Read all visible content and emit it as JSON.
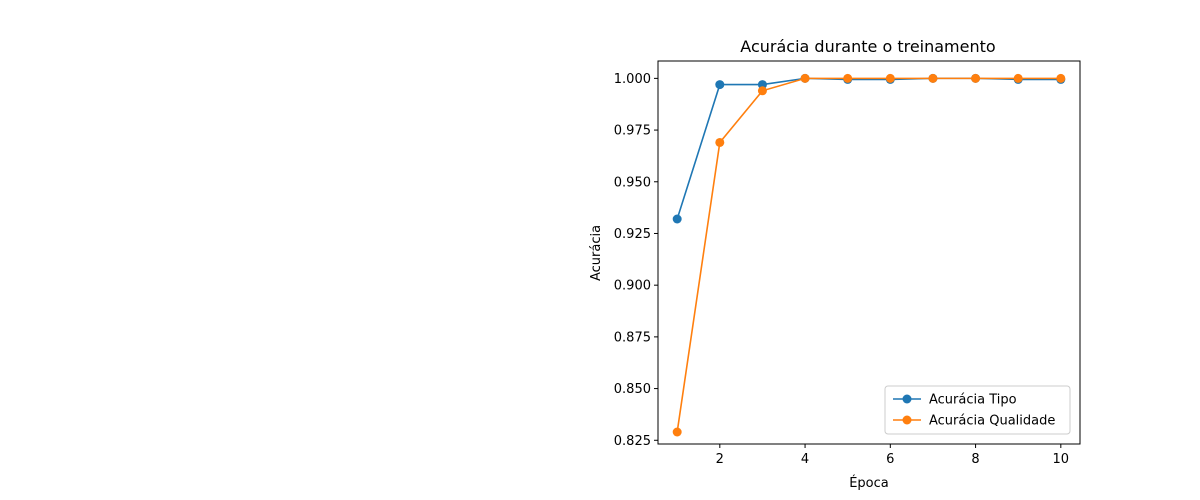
{
  "chart_data": {
    "type": "line",
    "title": "Acurácia durante o treinamento",
    "xlabel": "Época",
    "ylabel": "Acurácia",
    "x": [
      1,
      2,
      3,
      4,
      5,
      6,
      7,
      8,
      9,
      10
    ],
    "xlim": [
      0.55,
      10.45
    ],
    "ylim": [
      0.8232,
      1.0084
    ],
    "xticks": [
      2,
      4,
      6,
      8,
      10
    ],
    "xtick_labels": [
      "2",
      "4",
      "6",
      "8",
      "10"
    ],
    "yticks": [
      0.825,
      0.85,
      0.875,
      0.9,
      0.925,
      0.95,
      0.975,
      1.0
    ],
    "ytick_labels": [
      "0.825",
      "0.850",
      "0.875",
      "0.900",
      "0.925",
      "0.950",
      "0.975",
      "1.000"
    ],
    "grid": false,
    "legend_position": "lower-right",
    "series": [
      {
        "name": "Acurácia Tipo",
        "color": "#1f77b4",
        "values": [
          0.932,
          0.997,
          0.997,
          1.0,
          0.9995,
          0.9995,
          1.0,
          1.0,
          0.9995,
          0.9995
        ]
      },
      {
        "name": "Acurácia Qualidade",
        "color": "#ff7f0e",
        "values": [
          0.829,
          0.969,
          0.994,
          1.0,
          1.0,
          1.0,
          1.0,
          1.0,
          1.0,
          1.0
        ]
      }
    ]
  }
}
